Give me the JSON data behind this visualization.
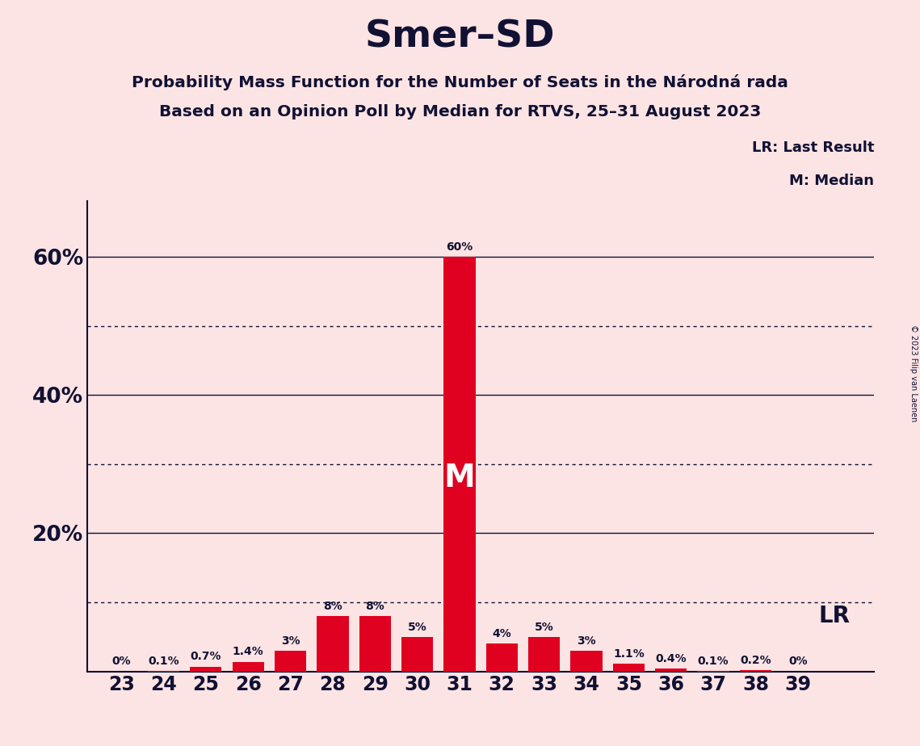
{
  "title": "Smer–SD",
  "subtitle1": "Probability Mass Function for the Number of Seats in the Národná rada",
  "subtitle2": "Based on an Opinion Poll by Median for RTVS, 25–31 August 2023",
  "copyright": "© 2023 Filip van Laenen",
  "seats": [
    23,
    24,
    25,
    26,
    27,
    28,
    29,
    30,
    31,
    32,
    33,
    34,
    35,
    36,
    37,
    38,
    39
  ],
  "probabilities": [
    0.0,
    0.1,
    0.7,
    1.4,
    3.0,
    8.0,
    8.0,
    5.0,
    60.0,
    4.0,
    5.0,
    3.0,
    1.1,
    0.4,
    0.1,
    0.2,
    0.0
  ],
  "labels": [
    "0%",
    "0.1%",
    "0.7%",
    "1.4%",
    "3%",
    "8%",
    "8%",
    "5%",
    "60%",
    "4%",
    "5%",
    "3%",
    "1.1%",
    "0.4%",
    "0.1%",
    "0.2%",
    "0%"
  ],
  "bar_color": "#e00020",
  "median_seat": 31,
  "median_label": "M",
  "lr_prob": 10.0,
  "lr_label": "LR",
  "lr_legend": "LR: Last Result",
  "m_legend": "M: Median",
  "bg_color": "#fce4e4",
  "text_color": "#111133",
  "yticks_solid": [
    20,
    40,
    60
  ],
  "ytick_labels": [
    "20%",
    "40%",
    "60%"
  ],
  "dotted_yticks": [
    10,
    30,
    50
  ],
  "ylim": [
    0,
    68
  ],
  "bar_width": 0.75
}
